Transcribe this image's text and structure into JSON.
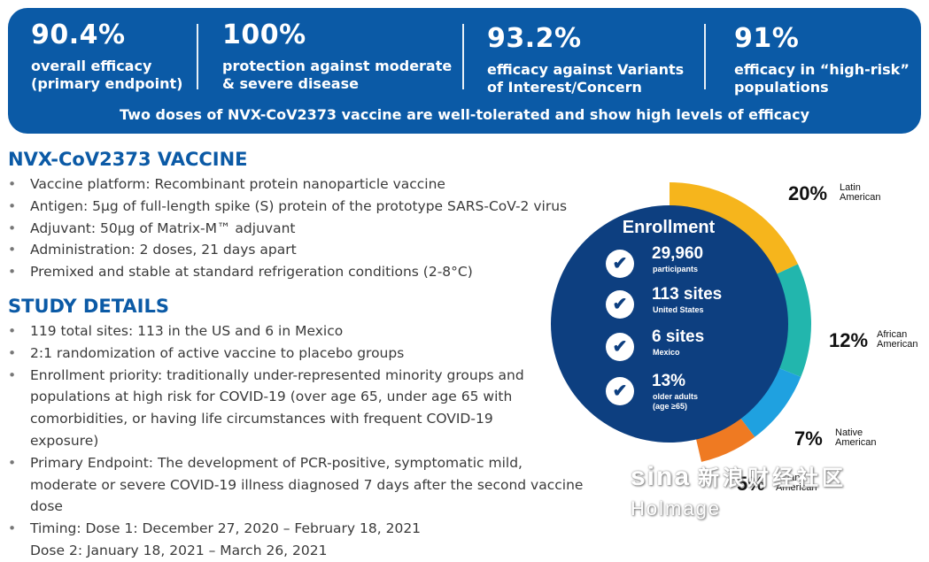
{
  "banner": {
    "stats": [
      {
        "value": "90.4%",
        "label_line1": "overall efficacy",
        "label_line2": "(primary endpoint)"
      },
      {
        "value": "100%",
        "label_line1": "protection against moderate",
        "label_line2": "& severe disease"
      },
      {
        "value": "93.2%",
        "label_line1": "efficacy against Variants",
        "label_line2": "of Interest/Concern"
      },
      {
        "value": "91%",
        "label_line1": "efficacy in “high-risk”",
        "label_line2": "populations"
      }
    ],
    "footer": "Two doses of NVX-CoV2373 vaccine are well-tolerated and show high levels of efficacy"
  },
  "vaccine": {
    "heading": "NVX-CoV2373 VACCINE",
    "items": [
      "Vaccine platform: Recombinant protein nanoparticle vaccine",
      "Antigen: 5µg of full-length spike (S) protein of the prototype SARS-CoV-2 virus",
      "Adjuvant: 50µg of Matrix-M™ adjuvant",
      "Administration: 2 doses, 21 days apart",
      "Premixed and stable at standard refrigeration conditions (2-8°C)"
    ]
  },
  "study": {
    "heading": "STUDY DETAILS",
    "items": [
      "119 total sites: 113 in the US and 6 in Mexico",
      "2:1 randomization of active vaccine to placebo groups",
      "Enrollment priority: traditionally under-represented minority groups and populations at high risk for COVID-19 (over age 65, under age 65 with comorbidities, or having life circumstances with frequent COVID-19 exposure)",
      "Primary Endpoint: The development of PCR-positive, symptomatic mild, moderate or severe COVID-19 illness diagnosed 7 days after the second vaccine dose"
    ],
    "timing_line1": "Timing:  Dose 1: December 27, 2020 – February 18, 2021",
    "timing_line2": "Dose 2: January 18, 2021 – March 26, 2021"
  },
  "enrollment": {
    "title": "Enrollment",
    "rows": [
      {
        "value": "29,960",
        "sub": "participants",
        "sub2": ""
      },
      {
        "value": "113 sites",
        "sub": "United States",
        "sub2": ""
      },
      {
        "value": "6 sites",
        "sub": "Mexico",
        "sub2": ""
      },
      {
        "value": "13%",
        "sub": "older adults",
        "sub2": "(age ≥65)"
      }
    ],
    "check_glyph": "✔",
    "segments": [
      {
        "pct": "20%",
        "name_line1": "Latin",
        "name_line2": "American",
        "color": "#f6b51c"
      },
      {
        "pct": "12%",
        "name_line1": "African",
        "name_line2": "American",
        "color": "#22b6ad"
      },
      {
        "pct": "7%",
        "name_line1": "Native",
        "name_line2": "American",
        "color": "#1fa1e0"
      },
      {
        "pct": "5%",
        "name_line1": "Asian",
        "name_line2": "American",
        "color": "#ef7a22"
      }
    ],
    "center_color": "#0d3f80"
  },
  "watermark": {
    "brand": "sina",
    "cn": "新浪财经社区",
    "en": "Holmage"
  }
}
